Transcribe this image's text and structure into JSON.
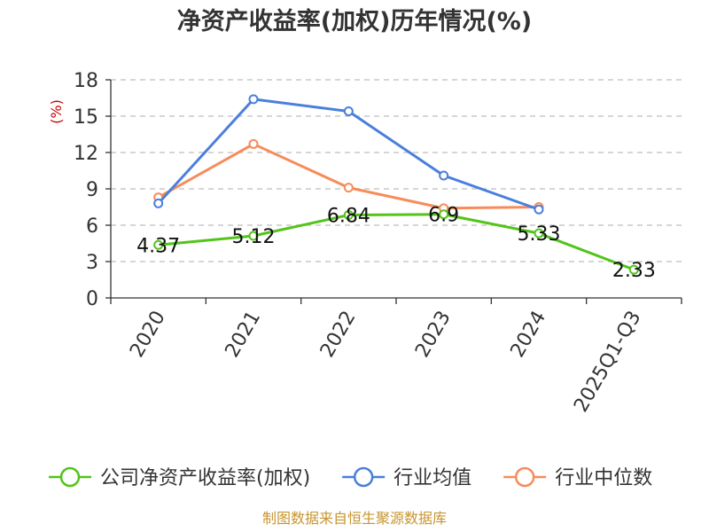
{
  "chart_data": {
    "type": "line",
    "title": "净资产收益率(加权)历年情况(%)",
    "ylabel": "(%)",
    "xlabel": "",
    "categories": [
      "2020",
      "2021",
      "2022",
      "2023",
      "2024",
      "2025Q1-Q3"
    ],
    "ylim": [
      0,
      18
    ],
    "yticks": [
      0,
      3,
      6,
      9,
      12,
      15,
      18
    ],
    "grid": true,
    "legend_position": "bottom",
    "series": [
      {
        "name": "公司净资产收益率(加权)",
        "color": "#52c41a",
        "values": [
          4.37,
          5.12,
          6.84,
          6.9,
          5.33,
          2.33
        ],
        "labels": [
          "4.37",
          "5.12",
          "6.84",
          "6.9",
          "5.33",
          "2.33"
        ]
      },
      {
        "name": "行业均值",
        "color": "#4a7fdc",
        "values": [
          7.8,
          16.4,
          15.4,
          10.1,
          7.3,
          null
        ]
      },
      {
        "name": "行业中位数",
        "color": "#f78c5a",
        "values": [
          8.3,
          12.7,
          9.1,
          7.4,
          7.5,
          null
        ]
      }
    ]
  },
  "source": "制图数据来自恒生聚源数据库"
}
